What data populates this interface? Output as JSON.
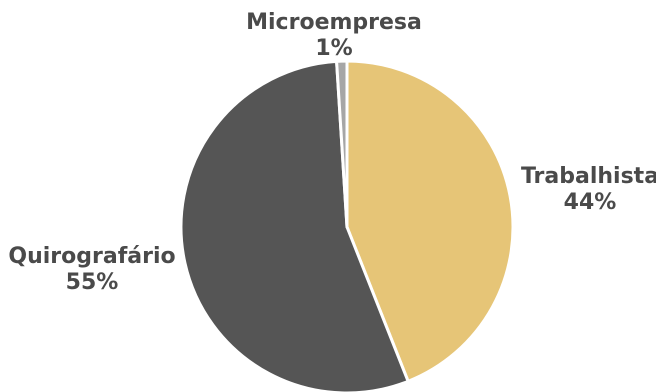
{
  "chart_data": {
    "type": "pie",
    "start_angle_deg": 0,
    "direction": "clockwise",
    "slices": [
      {
        "name": "Trabalhista",
        "value": 44,
        "label": "44%",
        "color": "#E6C577"
      },
      {
        "name": "Quirografário",
        "value": 55,
        "label": "55%",
        "color": "#555555"
      },
      {
        "name": "Microempresa",
        "value": 1,
        "label": "1%",
        "color": "#A6A6A6"
      }
    ]
  }
}
